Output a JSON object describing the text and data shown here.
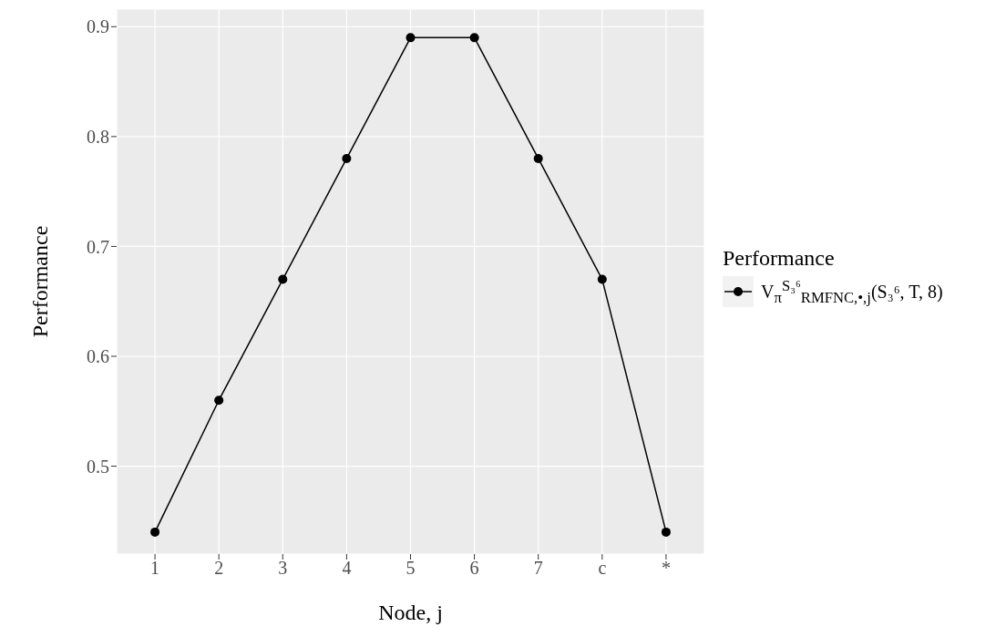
{
  "chart_data": {
    "type": "line",
    "xlabel": "Node, j",
    "ylabel": "Performance",
    "legend_title": "Performance",
    "categories": [
      "1",
      "2",
      "3",
      "4",
      "5",
      "6",
      "7",
      "c",
      "*"
    ],
    "series": [
      {
        "name": "V$_{π}$$^{S₃⁶}$$_{RMFNC,•,j}$(S₃⁶, T, 8)",
        "color": "#000000",
        "values": [
          0.44,
          0.56,
          0.67,
          0.78,
          0.89,
          0.89,
          0.78,
          0.67,
          0.44
        ]
      }
    ],
    "ylim": [
      0.42,
      0.916
    ],
    "yticks": [
      0.5,
      0.6,
      0.7,
      0.8,
      0.9
    ],
    "grid": true,
    "legend": "right",
    "marker": "circle",
    "line_style": "solid"
  }
}
